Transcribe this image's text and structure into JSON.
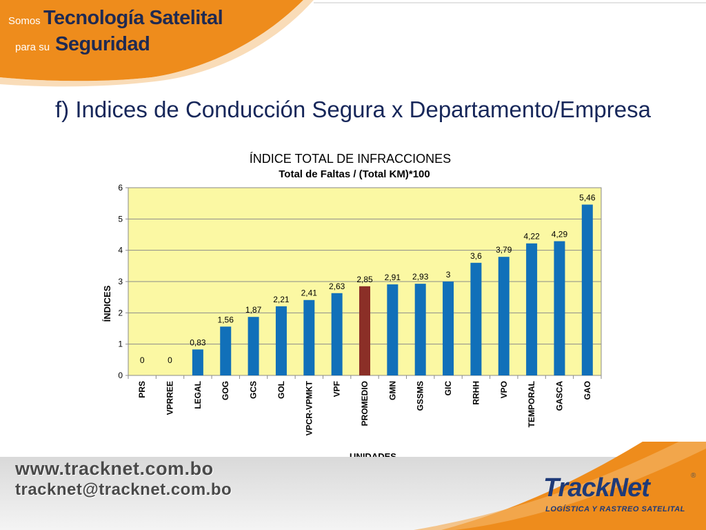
{
  "header": {
    "word_somos": "Somos",
    "title_line1": "Tecnología Satelital",
    "word_para": "para su",
    "title_line2": "Seguridad"
  },
  "slide_title": "f) Indices de Conducción Segura x Departamento/Empresa",
  "footer": {
    "website": "www.tracknet.com.bo",
    "email": "tracknet@tracknet.com.bo"
  },
  "logo": {
    "name": "TrackNet",
    "registered": "®",
    "tagline": "LOGÍSTICA Y RASTREO SATELITAL"
  },
  "colors": {
    "accent_orange": "#ee8c1c",
    "bar_blue": "#1170b9",
    "bar_highlight": "#8b2f27",
    "plot_background": "#fbf8a3"
  },
  "chart_data": {
    "type": "bar",
    "title": "ÍNDICE TOTAL DE INFRACCIONES",
    "subtitle": "Total de Faltas / (Total KM)*100",
    "xlabel": "UNIDADES",
    "ylabel": "ÍNDICES",
    "ylim": [
      0,
      6
    ],
    "yticks": [
      "0",
      "1",
      "2",
      "3",
      "4",
      "5",
      "6"
    ],
    "grid": true,
    "legend": "none",
    "categories": [
      "PRS",
      "VPRREE",
      "LEGAL",
      "GOG",
      "GCS",
      "GOL",
      "VPCR-VPMKT",
      "VPF",
      "PROMEDIO",
      "GMN",
      "GSSMS",
      "GIC",
      "RRHH",
      "VPO",
      "TEMPORAL",
      "GASCA",
      "GAO"
    ],
    "values": [
      0,
      0,
      0.83,
      1.56,
      1.87,
      2.21,
      2.41,
      2.63,
      2.85,
      2.91,
      2.93,
      3,
      3.6,
      3.79,
      4.22,
      4.29,
      5.46
    ],
    "value_labels": [
      "0",
      "0",
      "0,83",
      "1,56",
      "1,87",
      "2,21",
      "2,41",
      "2,63",
      "2,85",
      "2,91",
      "2,93",
      "3",
      "3,6",
      "3,79",
      "4,22",
      "4,29",
      "5,46"
    ],
    "highlight_category": "PROMEDIO"
  }
}
